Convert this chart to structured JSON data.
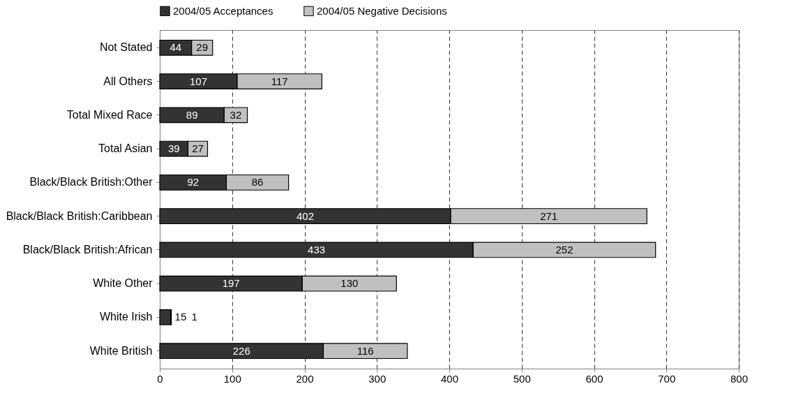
{
  "chart_data": {
    "type": "bar",
    "orientation": "horizontal",
    "stacked": true,
    "data_labels": true,
    "grid": "x",
    "legend": "top",
    "categories": [
      "Not Stated",
      "All Others",
      "Total Mixed Race",
      "Total Asian",
      "Black/Black British:Other",
      "Black/Black British:Caribbean",
      "Black/Black British:African",
      "White Other",
      "White Irish",
      "White British"
    ],
    "series": [
      {
        "name": "2004/05 Acceptances",
        "color": "#333333",
        "values": [
          44,
          107,
          89,
          39,
          92,
          402,
          433,
          197,
          15,
          226
        ]
      },
      {
        "name": "2004/05 Negative Decisions",
        "color": "#c0c0c0",
        "values": [
          29,
          117,
          32,
          27,
          86,
          271,
          252,
          130,
          1,
          116
        ]
      }
    ],
    "xlim": [
      0,
      800
    ],
    "xticks": [
      0,
      100,
      200,
      300,
      400,
      500,
      600,
      700,
      800
    ]
  }
}
